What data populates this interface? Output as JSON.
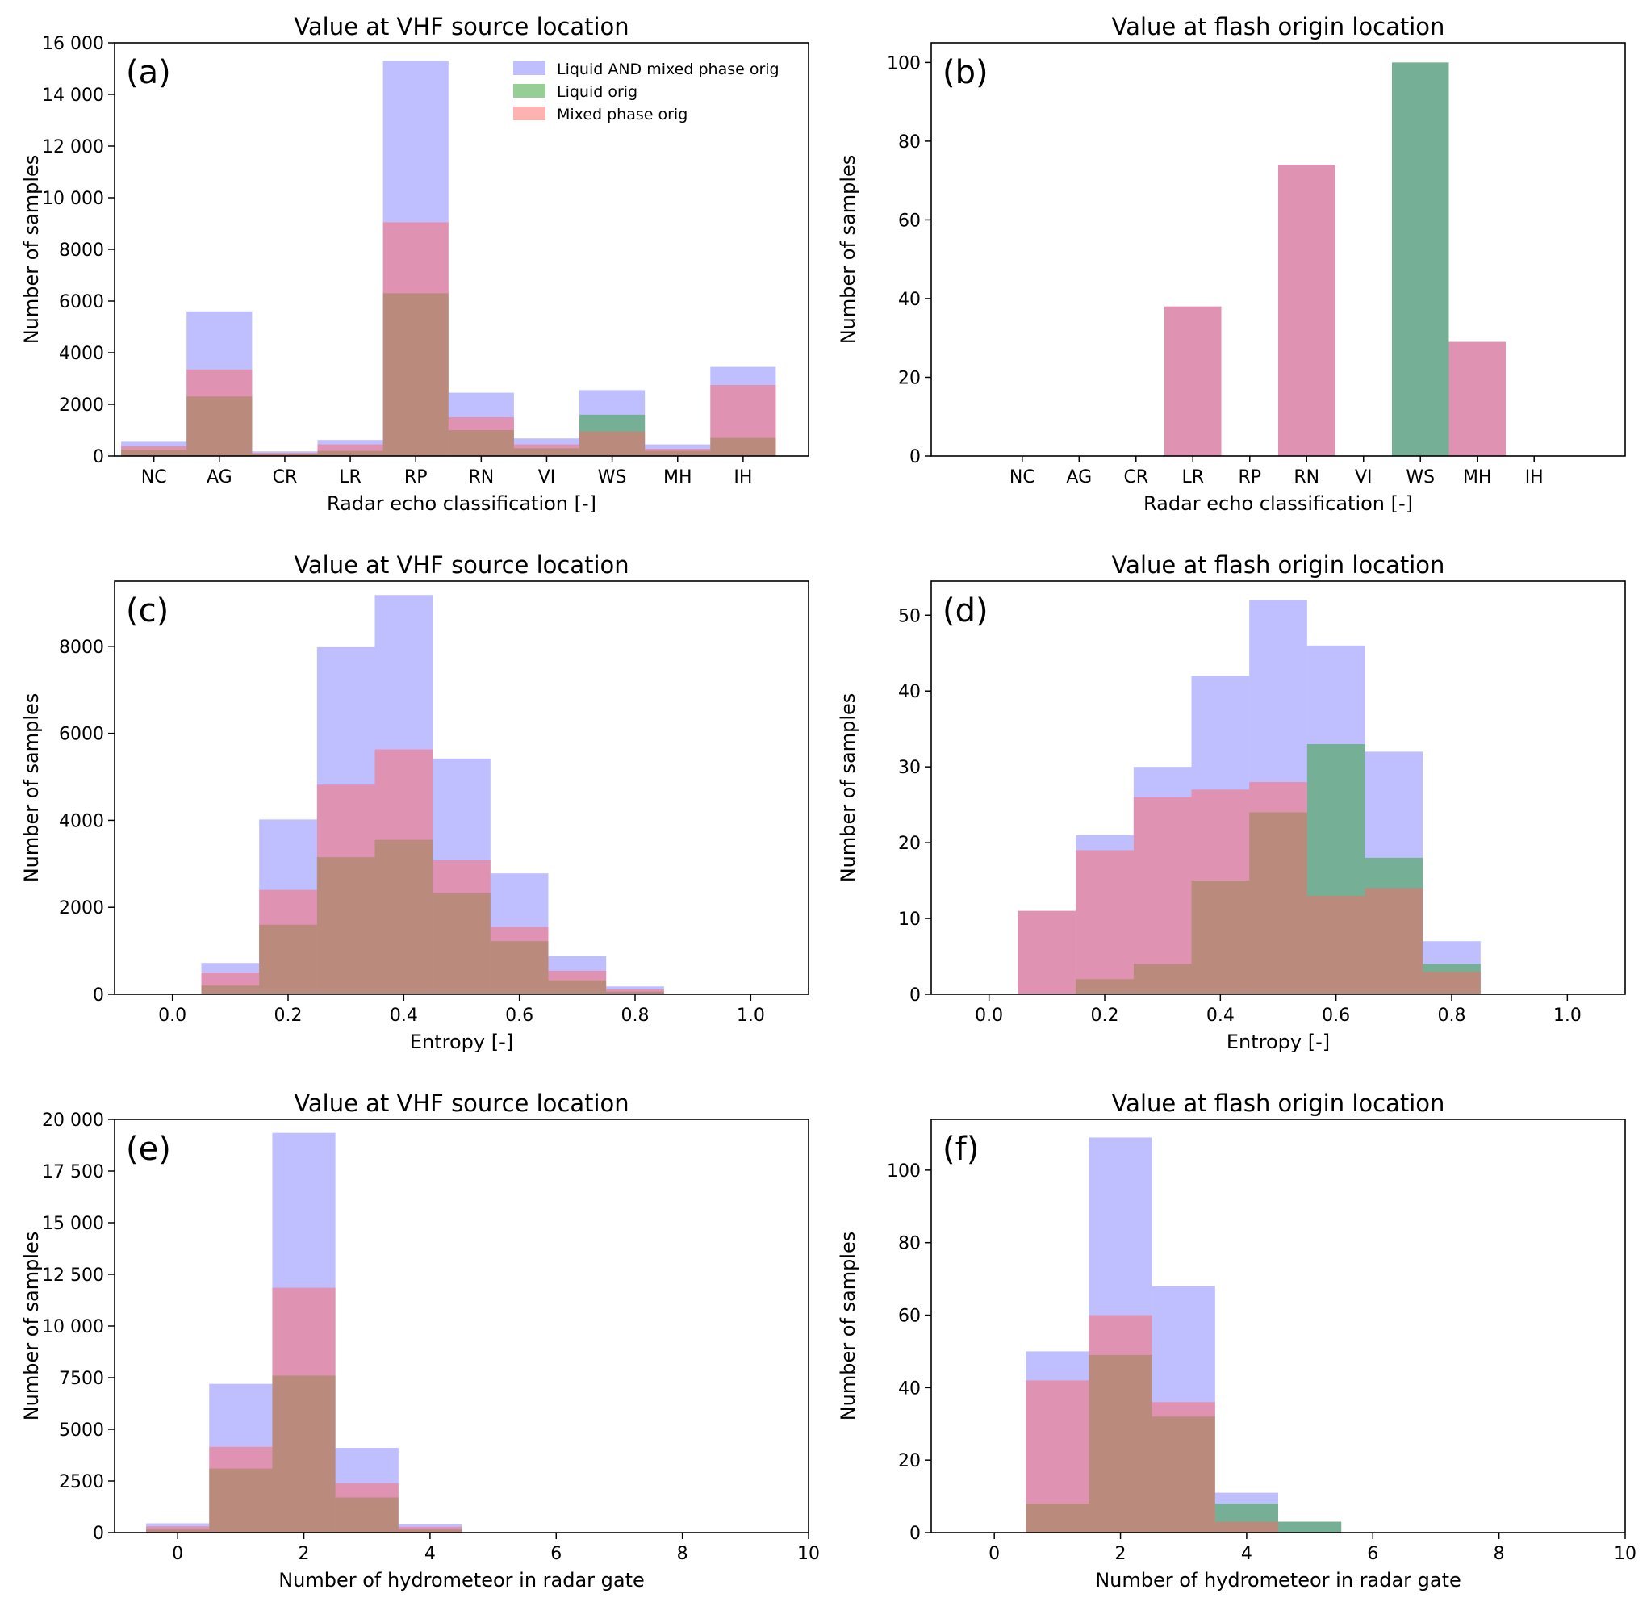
{
  "colors": {
    "combined": "#8080ff",
    "liquid": "#2ca02c",
    "mixed": "#ff6666",
    "alpha": 0.5
  },
  "legend": [
    {
      "label": "Liquid AND mixed phase orig",
      "color_key": "combined"
    },
    {
      "label": "Liquid orig",
      "color_key": "liquid"
    },
    {
      "label": "Mixed phase orig",
      "color_key": "mixed"
    }
  ],
  "chart_data": [
    {
      "panel": "(a)",
      "type": "bar",
      "title": "Value at VHF source location",
      "xlabel": "Radar echo classification [-]",
      "ylabel": "Number of samples",
      "categories": [
        "NC",
        "AG",
        "CR",
        "LR",
        "RP",
        "RN",
        "VI",
        "WS",
        "MH",
        "IH"
      ],
      "xlim": [
        -0.6,
        10.0
      ],
      "ylim": [
        0,
        16000
      ],
      "yticks": [
        0,
        2000,
        4000,
        6000,
        8000,
        10000,
        12000,
        14000,
        16000
      ],
      "ytick_labels": [
        "0",
        "2000",
        "4000",
        "6000",
        "8000",
        "10 000",
        "12 000",
        "14 000",
        "16 000"
      ],
      "legend": true,
      "series": [
        {
          "name": "Liquid AND mixed phase orig",
          "values": [
            550,
            5600,
            180,
            620,
            15300,
            2450,
            680,
            2550,
            450,
            3450
          ]
        },
        {
          "name": "Liquid orig",
          "values": [
            250,
            2300,
            80,
            200,
            6300,
            1000,
            300,
            1600,
            200,
            700
          ]
        },
        {
          "name": "Mixed phase orig",
          "values": [
            380,
            3350,
            120,
            450,
            9050,
            1500,
            450,
            950,
            280,
            2750
          ]
        }
      ]
    },
    {
      "panel": "(b)",
      "type": "bar",
      "title": "Value at flash origin location",
      "xlabel": "Radar echo classification [-]",
      "ylabel": "Number of samples",
      "categories": [
        "NC",
        "AG",
        "CR",
        "LR",
        "RP",
        "RN",
        "VI",
        "WS",
        "MH",
        "IH"
      ],
      "xlim": [
        -1.6,
        10.6
      ],
      "ylim": [
        0,
        105
      ],
      "yticks": [
        0,
        20,
        40,
        60,
        80,
        100
      ],
      "ytick_labels": [
        "0",
        "20",
        "40",
        "60",
        "80",
        "100"
      ],
      "series": [
        {
          "name": "Liquid AND mixed phase orig",
          "values": [
            0,
            0,
            0,
            38,
            0,
            74,
            0,
            100,
            29,
            0
          ]
        },
        {
          "name": "Liquid orig",
          "values": [
            0,
            0,
            0,
            0,
            0,
            0,
            0,
            100,
            0,
            0
          ]
        },
        {
          "name": "Mixed phase orig",
          "values": [
            0,
            0,
            0,
            38,
            0,
            74,
            0,
            0,
            29,
            0
          ]
        }
      ]
    },
    {
      "panel": "(c)",
      "type": "histogram",
      "title": "Value at VHF source location",
      "xlabel": "Entropy [-]",
      "ylabel": "Number of samples",
      "xlim": [
        -0.1,
        1.1
      ],
      "ylim": [
        0,
        9500
      ],
      "xticks": [
        0.0,
        0.2,
        0.4,
        0.6,
        0.8,
        1.0
      ],
      "xtick_labels": [
        "0.0",
        "0.2",
        "0.4",
        "0.6",
        "0.8",
        "1.0"
      ],
      "yticks": [
        0,
        2000,
        4000,
        6000,
        8000
      ],
      "ytick_labels": [
        "0",
        "2000",
        "4000",
        "6000",
        "8000"
      ],
      "bin_edges": [
        0.05,
        0.15,
        0.25,
        0.35,
        0.45,
        0.55,
        0.65,
        0.75,
        0.85
      ],
      "series": [
        {
          "name": "Liquid AND mixed phase orig",
          "values": [
            720,
            4020,
            7980,
            9180,
            5420,
            2780,
            880,
            180
          ]
        },
        {
          "name": "Liquid orig",
          "values": [
            200,
            1600,
            3150,
            3550,
            2320,
            1220,
            320,
            60
          ]
        },
        {
          "name": "Mixed phase orig",
          "values": [
            500,
            2400,
            4820,
            5630,
            3080,
            1550,
            540,
            110
          ]
        }
      ]
    },
    {
      "panel": "(d)",
      "type": "histogram",
      "title": "Value at flash origin location",
      "xlabel": "Entropy [-]",
      "ylabel": "Number of samples",
      "xlim": [
        -0.1,
        1.1
      ],
      "ylim": [
        0,
        54.5
      ],
      "xticks": [
        0.0,
        0.2,
        0.4,
        0.6,
        0.8,
        1.0
      ],
      "xtick_labels": [
        "0.0",
        "0.2",
        "0.4",
        "0.6",
        "0.8",
        "1.0"
      ],
      "yticks": [
        0,
        10,
        20,
        30,
        40,
        50
      ],
      "ytick_labels": [
        "0",
        "10",
        "20",
        "30",
        "40",
        "50"
      ],
      "bin_edges": [
        0.05,
        0.15,
        0.25,
        0.35,
        0.45,
        0.55,
        0.65,
        0.75,
        0.85
      ],
      "series": [
        {
          "name": "Liquid AND mixed phase orig",
          "values": [
            11,
            21,
            30,
            42,
            52,
            46,
            32,
            7
          ]
        },
        {
          "name": "Liquid orig",
          "values": [
            0,
            2,
            4,
            15,
            24,
            33,
            18,
            4
          ]
        },
        {
          "name": "Mixed phase orig",
          "values": [
            11,
            19,
            26,
            27,
            28,
            13,
            14,
            3
          ]
        }
      ]
    },
    {
      "panel": "(e)",
      "type": "histogram",
      "title": "Value at VHF source location",
      "xlabel": "Number of hydrometeor in radar gate",
      "ylabel": "Number of samples",
      "xlim": [
        -1,
        10
      ],
      "ylim": [
        0,
        20000
      ],
      "xticks": [
        0,
        2,
        4,
        6,
        8,
        10
      ],
      "xtick_labels": [
        "0",
        "2",
        "4",
        "6",
        "8",
        "10"
      ],
      "yticks": [
        0,
        2500,
        5000,
        7500,
        10000,
        12500,
        15000,
        17500,
        20000
      ],
      "ytick_labels": [
        "0",
        "2500",
        "5000",
        "7500",
        "10 000",
        "12 500",
        "15 000",
        "17 500",
        "20 000"
      ],
      "bin_edges": [
        -0.5,
        0.5,
        1.5,
        2.5,
        3.5,
        4.5
      ],
      "series": [
        {
          "name": "Liquid AND mixed phase orig",
          "values": [
            450,
            7200,
            19350,
            4100,
            430
          ]
        },
        {
          "name": "Liquid orig",
          "values": [
            150,
            3100,
            7600,
            1700,
            150
          ]
        },
        {
          "name": "Mixed phase orig",
          "values": [
            300,
            4150,
            11850,
            2400,
            280
          ]
        }
      ]
    },
    {
      "panel": "(f)",
      "type": "histogram",
      "title": "Value at flash origin location",
      "xlabel": "Number of hydrometeor in radar gate",
      "ylabel": "Number of samples",
      "xlim": [
        -1,
        10
      ],
      "ylim": [
        0,
        114
      ],
      "xticks": [
        0,
        2,
        4,
        6,
        8,
        10
      ],
      "xtick_labels": [
        "0",
        "2",
        "4",
        "6",
        "8",
        "10"
      ],
      "yticks": [
        0,
        20,
        40,
        60,
        80,
        100
      ],
      "ytick_labels": [
        "0",
        "20",
        "40",
        "60",
        "80",
        "100"
      ],
      "bin_edges": [
        0.5,
        1.5,
        2.5,
        3.5,
        4.5,
        5.5
      ],
      "series": [
        {
          "name": "Liquid AND mixed phase orig",
          "values": [
            50,
            109,
            68,
            11,
            3
          ]
        },
        {
          "name": "Liquid orig",
          "values": [
            8,
            49,
            32,
            8,
            3
          ]
        },
        {
          "name": "Mixed phase orig",
          "values": [
            42,
            60,
            36,
            3,
            0
          ]
        }
      ]
    }
  ]
}
